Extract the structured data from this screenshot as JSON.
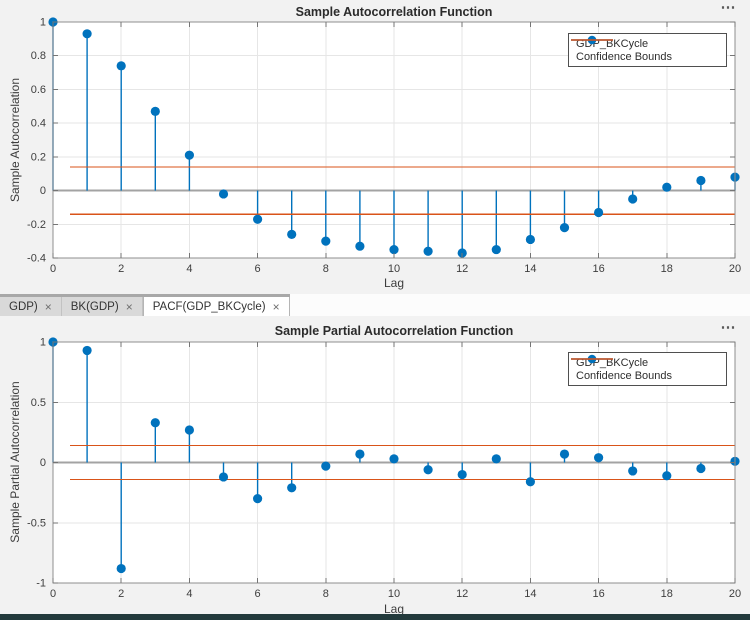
{
  "colors": {
    "series_blue": "#0072BD",
    "confidence_orange": "#D95319",
    "figure_background": "#F2F2F2",
    "axes_background": "#FFFFFF",
    "bottom_bar": "#233A3C"
  },
  "tab_bar": {
    "tabs": [
      {
        "label": "GDP)",
        "close_icon": "×",
        "active": false
      },
      {
        "label": "BK(GDP)",
        "close_icon": "×",
        "active": false
      },
      {
        "label": "PACF(GDP_BKCycle)",
        "close_icon": "×",
        "active": true
      }
    ]
  },
  "chart_data": [
    {
      "type": "stem",
      "title": "Sample Autocorrelation Function",
      "xlabel": "Lag",
      "ylabel": "Sample Autocorrelation",
      "menu_icon": "⋯",
      "legend_entries": [
        "GDP_BKCycle",
        "Confidence Bounds"
      ],
      "legend_position": "top-right",
      "grid": true,
      "x": [
        0,
        1,
        2,
        3,
        4,
        5,
        6,
        7,
        8,
        9,
        10,
        11,
        12,
        13,
        14,
        15,
        16,
        17,
        18,
        19,
        20
      ],
      "values": [
        1.0,
        0.93,
        0.74,
        0.47,
        0.21,
        -0.02,
        -0.17,
        -0.26,
        -0.3,
        -0.33,
        -0.35,
        -0.36,
        -0.37,
        -0.35,
        -0.29,
        -0.22,
        -0.13,
        -0.05,
        0.02,
        0.06,
        0.08
      ],
      "confidence_bounds": [
        0.14,
        -0.14
      ],
      "confidence_x_start": 0.5,
      "xlim": [
        0,
        20
      ],
      "ylim": [
        -0.4,
        1
      ],
      "xticks": [
        0,
        2,
        4,
        6,
        8,
        10,
        12,
        14,
        16,
        18,
        20
      ],
      "yticks": [
        1,
        0.8,
        0.6,
        0.4,
        0.2,
        0,
        -0.2,
        -0.4
      ]
    },
    {
      "type": "stem",
      "title": "Sample Partial Autocorrelation Function",
      "xlabel": "Lag",
      "ylabel": "Sample Partial Autocorrelation",
      "menu_icon": "⋯",
      "legend_entries": [
        "GDP_BKCycle",
        "Confidence Bounds"
      ],
      "legend_position": "top-right",
      "grid": true,
      "x": [
        0,
        1,
        2,
        3,
        4,
        5,
        6,
        7,
        8,
        9,
        10,
        11,
        12,
        13,
        14,
        15,
        16,
        17,
        18,
        19,
        20
      ],
      "values": [
        1.0,
        0.93,
        -0.88,
        0.33,
        0.27,
        -0.12,
        -0.3,
        -0.21,
        -0.03,
        0.07,
        0.03,
        -0.06,
        -0.1,
        0.03,
        -0.16,
        0.07,
        0.04,
        -0.07,
        -0.11,
        -0.05,
        0.01
      ],
      "confidence_bounds": [
        0.14,
        -0.14
      ],
      "confidence_x_start": 0.5,
      "xlim": [
        0,
        20
      ],
      "ylim": [
        -1,
        1
      ],
      "xticks": [
        0,
        2,
        4,
        6,
        8,
        10,
        12,
        14,
        16,
        18,
        20
      ],
      "yticks": [
        1,
        0.5,
        0,
        -0.5,
        -1
      ]
    }
  ]
}
